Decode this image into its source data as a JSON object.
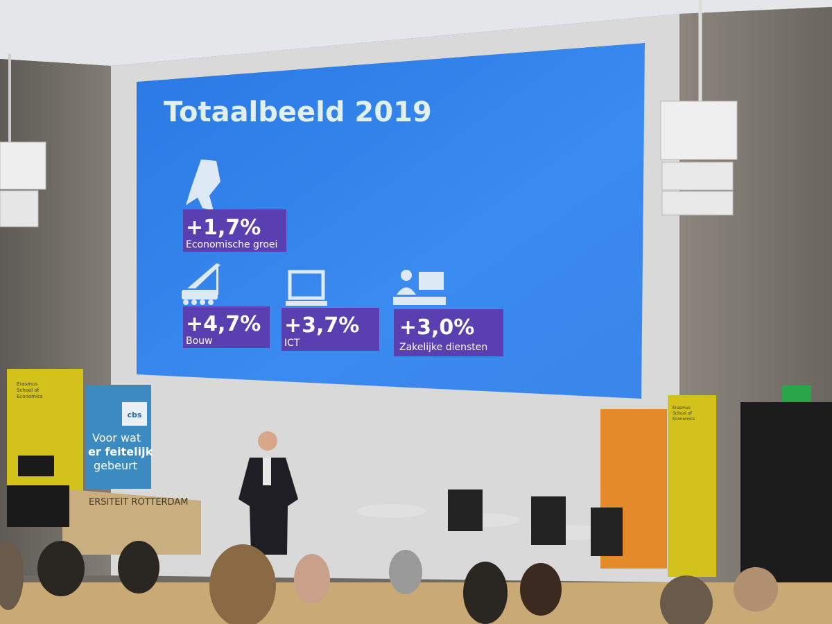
{
  "slide": {
    "title": "Totaalbeeld 2019",
    "stats": [
      {
        "value": "+1,7%",
        "label": "Economische groei"
      },
      {
        "value": "+4,7%",
        "label": "Bouw"
      },
      {
        "value": "+3,7%",
        "label": "ICT"
      },
      {
        "value": "+3,0%",
        "label": "Zakelijke diensten"
      }
    ]
  },
  "banners": {
    "cbs_lines": [
      "Voor wat",
      "er feitelijk",
      "gebeurt"
    ],
    "cbs_logo": "cbs",
    "erasmus_lines": [
      "Erasmus",
      "School of",
      "Economics"
    ],
    "lectern": "ERSITEIT ROTTERDAM"
  }
}
